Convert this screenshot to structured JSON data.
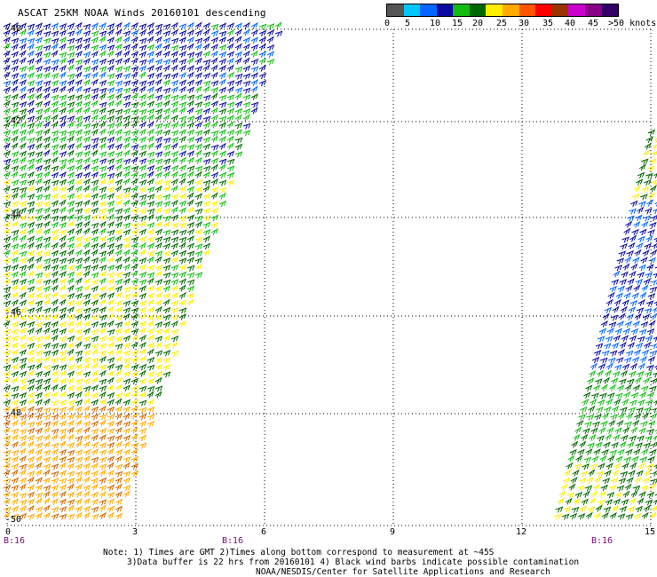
{
  "title": "ASCAT 25KM NOAA Winds 20160101 descending",
  "colorbar": {
    "colors": [
      "#555555",
      "#00c8ff",
      "#0066ff",
      "#0a0aa0",
      "#11bb11",
      "#006600",
      "#ffee00",
      "#ffaa00",
      "#ff5500",
      "#ff0000",
      "#993300",
      "#cc00cc",
      "#880088",
      "#330066"
    ],
    "labels": [
      "0",
      "5",
      "10",
      "15",
      "20",
      "25",
      "30",
      "35",
      "40",
      "45",
      ">50 knots"
    ]
  },
  "map": {
    "lat_labels": [
      "-40",
      "-42",
      "-44",
      "-46",
      "-48",
      "-50"
    ],
    "lon_labels": [
      "0",
      "3",
      "6",
      "9",
      "12",
      "15"
    ],
    "time_labels": [
      "B:16",
      "B:16",
      "B:16"
    ]
  },
  "notes": [
    "Note: 1) Times are GMT 2)Times along bottom correspond to measurement at ~45S",
    "3)Data buffer is 22 hrs from 20160101 4) Black wind barbs indicate possible contamination",
    "NOAA/NESDIS/Center for Satellite Applications and Research"
  ]
}
